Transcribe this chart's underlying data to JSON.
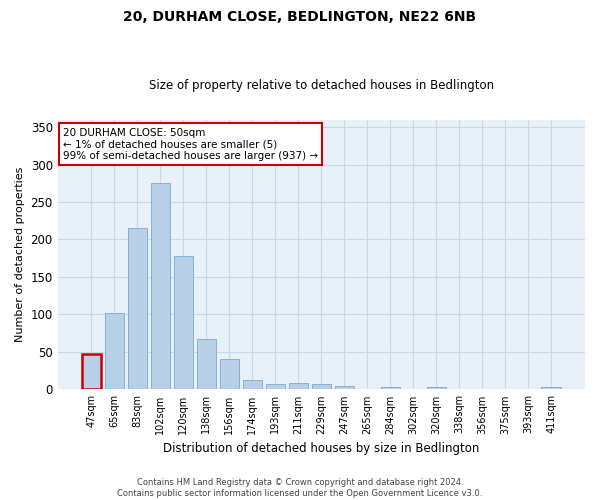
{
  "title": "20, DURHAM CLOSE, BEDLINGTON, NE22 6NB",
  "subtitle": "Size of property relative to detached houses in Bedlington",
  "xlabel": "Distribution of detached houses by size in Bedlington",
  "ylabel": "Number of detached properties",
  "categories": [
    "47sqm",
    "65sqm",
    "83sqm",
    "102sqm",
    "120sqm",
    "138sqm",
    "156sqm",
    "174sqm",
    "193sqm",
    "211sqm",
    "229sqm",
    "247sqm",
    "265sqm",
    "284sqm",
    "302sqm",
    "320sqm",
    "338sqm",
    "356sqm",
    "375sqm",
    "393sqm",
    "411sqm"
  ],
  "values": [
    47,
    102,
    215,
    275,
    178,
    67,
    40,
    13,
    7,
    8,
    7,
    4,
    0,
    3,
    0,
    3,
    0,
    0,
    0,
    0,
    3
  ],
  "highlight_index": 0,
  "bar_color": "#b8cfe8",
  "bar_edge_color": "#7aaad0",
  "highlight_bar_edge_color": "#cc0000",
  "annotation_text": "20 DURHAM CLOSE: 50sqm\n← 1% of detached houses are smaller (5)\n99% of semi-detached houses are larger (937) →",
  "annotation_box_facecolor": "#ffffff",
  "annotation_box_edgecolor": "#cc0000",
  "ylim": [
    0,
    360
  ],
  "yticks": [
    0,
    50,
    100,
    150,
    200,
    250,
    300,
    350
  ],
  "grid_color": "#c8d8ea",
  "background_color": "#e8f0f8",
  "footer_line1": "Contains HM Land Registry data © Crown copyright and database right 2024.",
  "footer_line2": "Contains public sector information licensed under the Open Government Licence v3.0."
}
